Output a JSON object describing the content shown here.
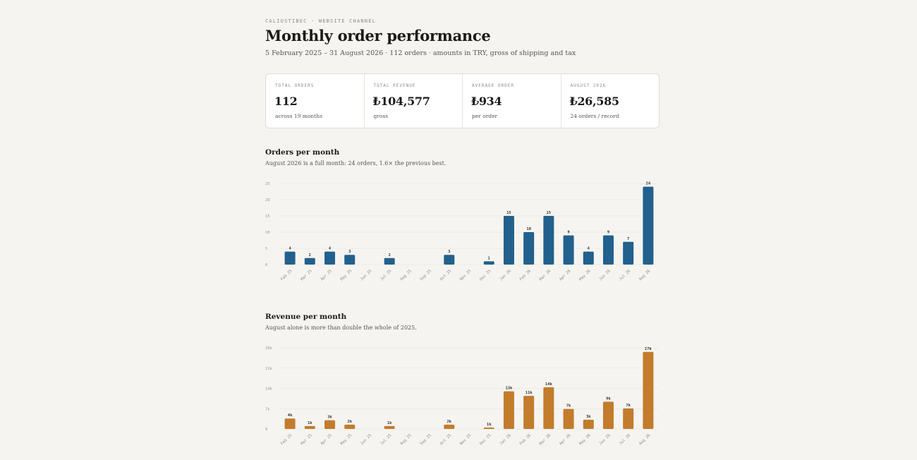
{
  "header": {
    "eyebrow": "CALIUSTIBEC · WEBSITE CHANNEL",
    "title": "Monthly order performance",
    "subtitle": "5 February 2025 – 31 August 2026 · 112 orders · amounts in TRY, gross of shipping and tax"
  },
  "kpis": [
    {
      "label": "TOTAL ORDERS",
      "value": "112",
      "sub": "across 19 months"
    },
    {
      "label": "TOTAL REVENUE",
      "value": "₺104,577",
      "sub": "gross"
    },
    {
      "label": "AVERAGE ORDER",
      "value": "₺934",
      "sub": "per order"
    },
    {
      "label": "AUGUST 2026",
      "value": "₺26,585",
      "sub": "24 orders / record"
    }
  ],
  "orders_section": {
    "title": "Orders per month",
    "note": "August 2026 is a full month: 24 orders, 1.6× the previous best."
  },
  "revenue_section": {
    "title": "Revenue per month",
    "note": "August alone is more than double the whole of 2025."
  },
  "colors": {
    "orders": "#22608d",
    "revenue": "#c27c2c",
    "grid": "#e4e2dc"
  },
  "chart_data": [
    {
      "type": "bar",
      "title": "Orders per month",
      "categories": [
        "Feb 25",
        "Mar 25",
        "Apr 25",
        "May 25",
        "Jun 25",
        "Jul 25",
        "Aug 25",
        "Sep 25",
        "Oct 25",
        "Nov 25",
        "Dec 25",
        "Jan 26",
        "Feb 26",
        "Mar 26",
        "Apr 26",
        "May 26",
        "Jun 26",
        "Jul 26",
        "Aug 26"
      ],
      "values": [
        4,
        2,
        4,
        3,
        0,
        2,
        0,
        0,
        3,
        0,
        1,
        15,
        10,
        15,
        9,
        4,
        9,
        7,
        24
      ],
      "labels": [
        "4",
        "2",
        "4",
        "3",
        "",
        "2",
        "",
        "",
        "3",
        "",
        "1",
        "15",
        "10",
        "15",
        "9",
        "4",
        "9",
        "7",
        "24"
      ],
      "yticks": [
        0,
        5,
        10,
        15,
        20,
        25
      ],
      "ytick_labels": [
        "0",
        "5",
        "10",
        "15",
        "20",
        "25"
      ],
      "ylim": [
        0,
        25
      ],
      "grid": true
    },
    {
      "type": "bar",
      "title": "Revenue per month",
      "categories": [
        "Feb 25",
        "Mar 25",
        "Apr 25",
        "May 25",
        "Jun 25",
        "Jul 25",
        "Aug 25",
        "Sep 25",
        "Oct 25",
        "Nov 25",
        "Dec 25",
        "Jan 26",
        "Feb 26",
        "Mar 26",
        "Apr 26",
        "May 26",
        "Jun 26",
        "Jul 26",
        "Aug 26"
      ],
      "values": [
        3600,
        1000,
        3000,
        1500,
        0,
        1000,
        0,
        0,
        1500,
        0,
        500,
        13000,
        11400,
        14400,
        6900,
        3200,
        9400,
        7100,
        26585
      ],
      "labels": [
        "4k",
        "1k",
        "3k",
        "2k",
        "",
        "1k",
        "",
        "",
        "2k",
        "",
        "1k",
        "13k",
        "11k",
        "14k",
        "7k",
        "3k",
        "9k",
        "7k",
        "27k"
      ],
      "yticks": [
        0,
        7000,
        14000,
        21000,
        28000
      ],
      "ytick_labels": [
        "0",
        "7k",
        "14k",
        "21k",
        "28k"
      ],
      "ylim": [
        0,
        28000
      ],
      "grid": true
    }
  ]
}
